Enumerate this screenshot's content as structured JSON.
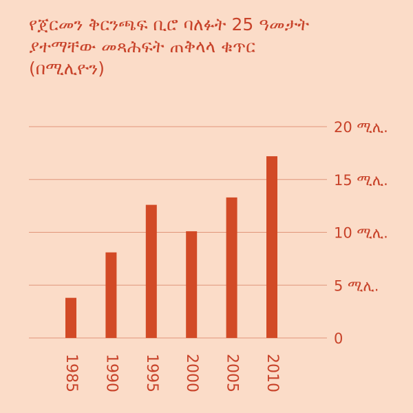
{
  "chart_data": {
    "type": "bar",
    "title_lines": [
      "የጀርመን ቅርንጫፍ ቢሮ ባለፉት 25 ዓመታት",
      "ያተማቸው መጻሕፍት ጠቅላላ ቁጥር",
      "(በሚሊዮን)"
    ],
    "categories": [
      "1985",
      "1990",
      "1995",
      "2000",
      "2005",
      "2010"
    ],
    "values": [
      3.8,
      8.1,
      12.6,
      10.1,
      13.3,
      17.2
    ],
    "ylim": [
      0,
      20
    ],
    "ytick_values": [
      0,
      5,
      10,
      15,
      20
    ],
    "ytick_labels": [
      "0",
      "5 ሚሊ.",
      "10 ሚሊ.",
      "15 ሚሊ.",
      "20 ሚሊ."
    ],
    "grid": true,
    "colors": {
      "background": "#fbdcc8",
      "bar": "#d24a26",
      "text": "#c8432a",
      "grid": "#e0957a"
    }
  }
}
